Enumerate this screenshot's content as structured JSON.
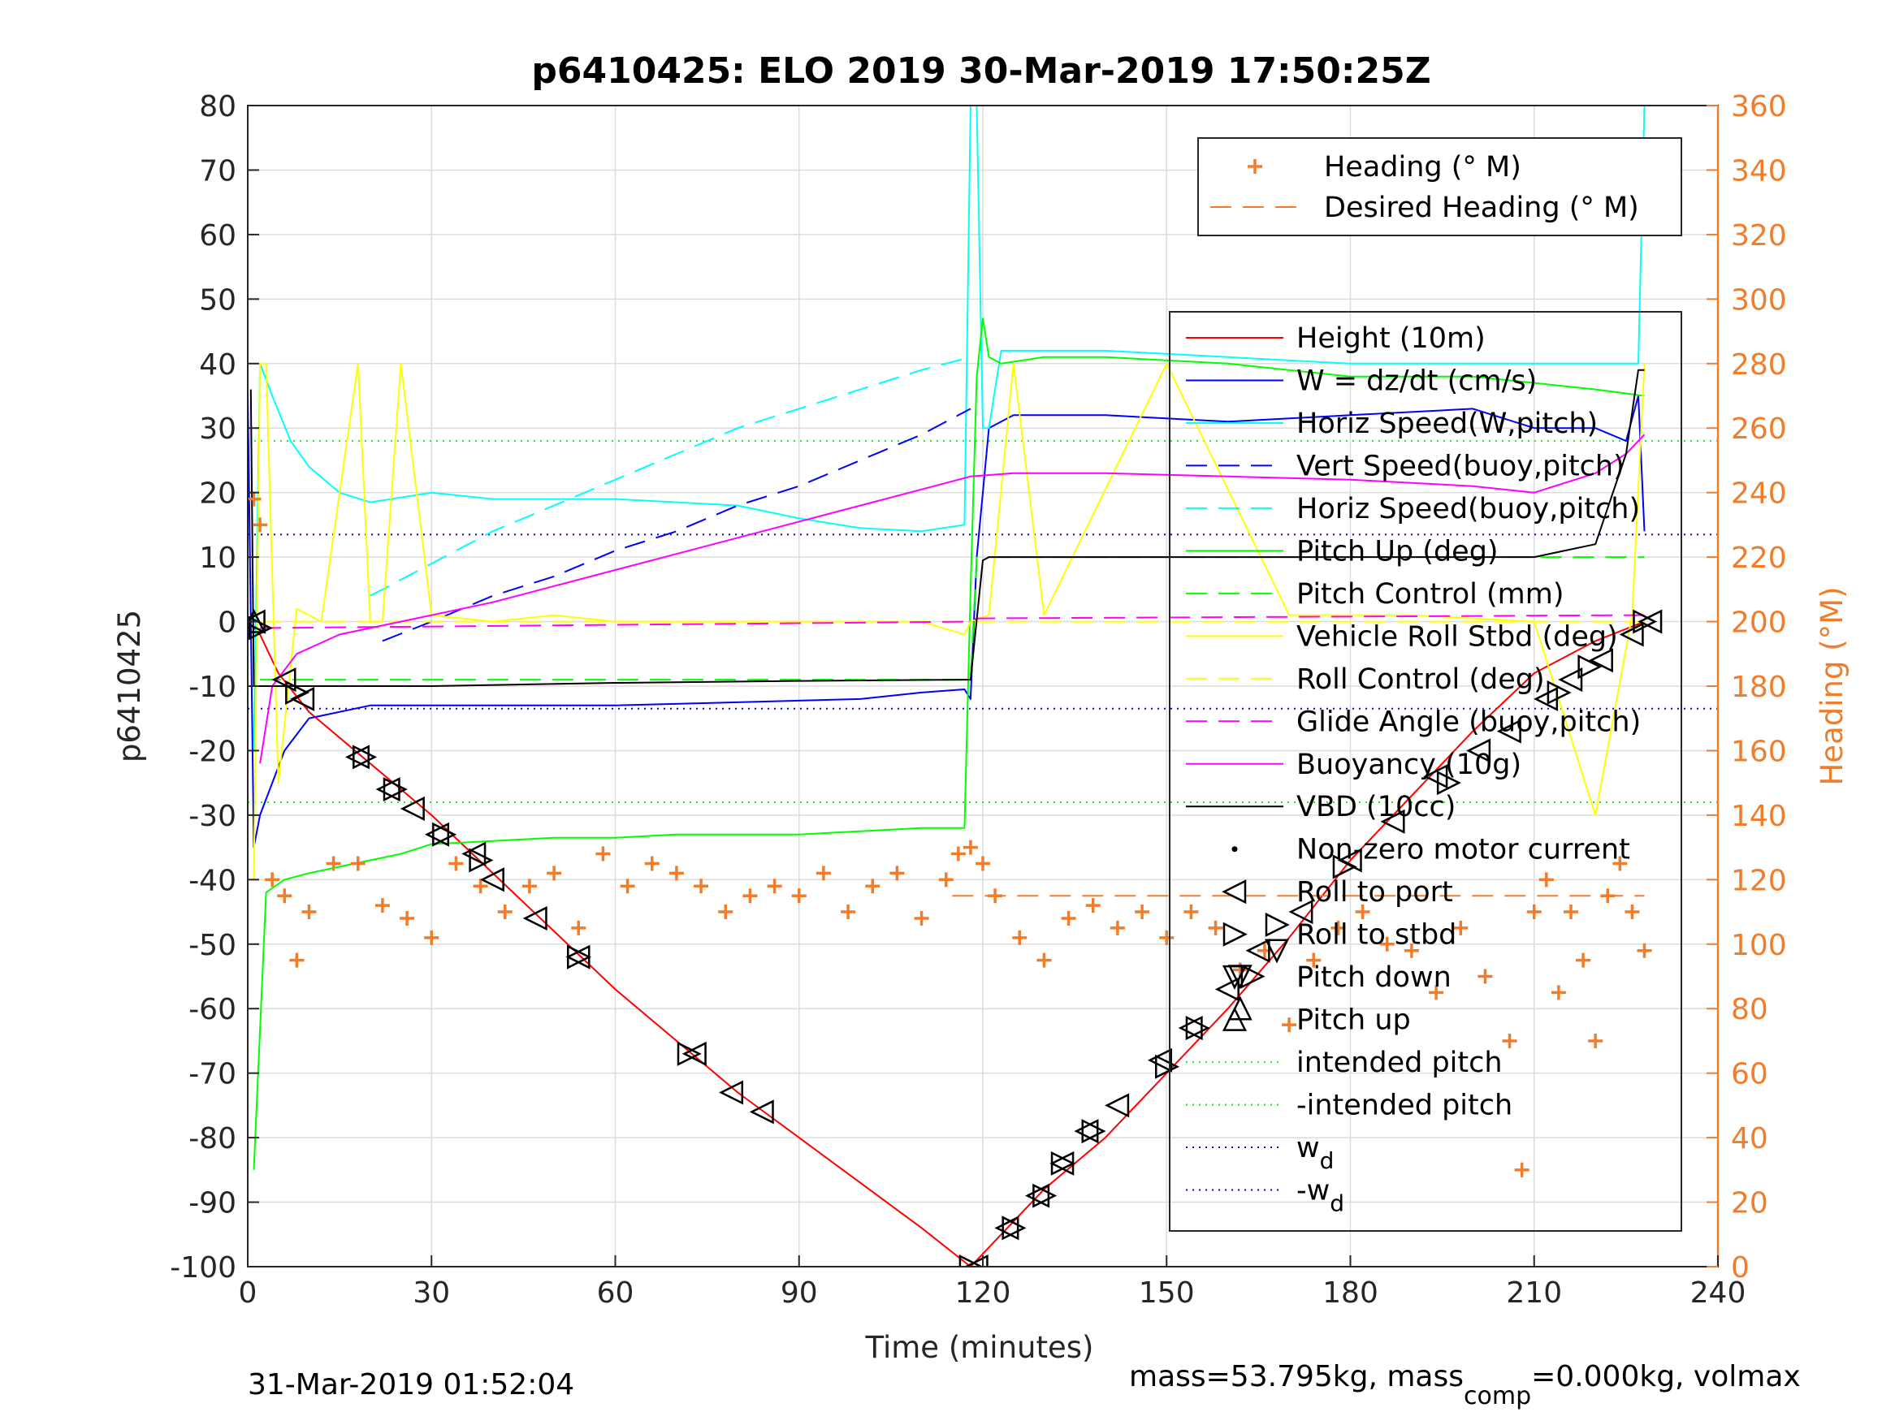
{
  "chart_data": {
    "type": "line",
    "title": "p6410425: ELO 2019 30-Mar-2019 17:50:25Z",
    "xlabel": "Time (minutes)",
    "ylabel_left": "p6410425",
    "ylabel_right": "Heading (°M)",
    "xlim": [
      0,
      240
    ],
    "ylim_left": [
      -100,
      80
    ],
    "ylim_right": [
      0,
      360
    ],
    "x_ticks": [
      0,
      30,
      60,
      90,
      120,
      150,
      180,
      210,
      240
    ],
    "y_ticks_left": [
      -100,
      -90,
      -80,
      -70,
      -60,
      -50,
      -40,
      -30,
      -20,
      -10,
      0,
      10,
      20,
      30,
      40,
      50,
      60,
      70,
      80
    ],
    "y_ticks_right": [
      0,
      20,
      40,
      60,
      80,
      100,
      120,
      140,
      160,
      180,
      200,
      220,
      240,
      260,
      280,
      300,
      320,
      340,
      360
    ],
    "grid": true,
    "legend_right_axis": {
      "placement": "top-right",
      "entries": [
        {
          "label": "Heading (° M)",
          "style": "plus",
          "color": "#F07D2B"
        },
        {
          "label": "Desired Heading (° M)",
          "style": "dash",
          "color": "#F07D2B"
        }
      ]
    },
    "legend_left_axis": {
      "placement": "right",
      "entries": [
        {
          "label": "Height (10m)",
          "style": "solid",
          "color": "#FF0000"
        },
        {
          "label": "W = dz/dt (cm/s)",
          "style": "solid",
          "color": "#0000FF"
        },
        {
          "label": "Horiz Speed(W,pitch)",
          "style": "solid",
          "color": "#00FFFF"
        },
        {
          "label": "Vert Speed(buoy,pitch)",
          "style": "dash",
          "color": "#0000FF"
        },
        {
          "label": "Horiz Speed(buoy,pitch)",
          "style": "dash",
          "color": "#00FFFF"
        },
        {
          "label": "Pitch Up (deg)",
          "style": "solid",
          "color": "#00FF00"
        },
        {
          "label": "Pitch Control (mm)",
          "style": "dash",
          "color": "#00FF00"
        },
        {
          "label": "Vehicle Roll Stbd (deg)",
          "style": "solid",
          "color": "#FFFF00"
        },
        {
          "label": "Roll Control (deg)",
          "style": "dash",
          "color": "#FFFF00"
        },
        {
          "label": "Glide Angle (buoy,pitch)",
          "style": "dash",
          "color": "#FF00FF"
        },
        {
          "label": "Buoyancy (10g)",
          "style": "solid",
          "color": "#FF00FF"
        },
        {
          "label": "VBD (10cc)",
          "style": "solid",
          "color": "#000000"
        },
        {
          "label": "Non-zero motor current",
          "style": "dot",
          "color": "#000000"
        },
        {
          "label": "Roll to port",
          "style": "tri-left",
          "color": "#000000"
        },
        {
          "label": "Roll to stbd",
          "style": "tri-right",
          "color": "#000000"
        },
        {
          "label": "Pitch down",
          "style": "tri-down",
          "color": "#000000"
        },
        {
          "label": "Pitch up",
          "style": "tri-up",
          "color": "#000000"
        },
        {
          "label": "intended pitch",
          "style": "dotted",
          "color": "#00FF00"
        },
        {
          "label": "-intended pitch",
          "style": "dotted",
          "color": "#00FF00"
        },
        {
          "label": "w",
          "sub": "d",
          "style": "dotted",
          "color": "#0000FF"
        },
        {
          "label": "-w",
          "sub": "d",
          "style": "dotted",
          "color": "#0000FF"
        }
      ]
    },
    "series": [
      {
        "name": "Height (10m)",
        "axis": "left",
        "color": "#FF0000",
        "x": [
          0,
          2,
          5,
          10,
          20,
          30,
          40,
          50,
          60,
          70,
          80,
          90,
          100,
          110,
          118,
          119,
          125,
          130,
          140,
          150,
          160,
          170,
          180,
          190,
          200,
          210,
          220,
          228
        ],
        "y": [
          0,
          -2,
          -8,
          -14,
          -22,
          -30,
          -39,
          -48,
          -57,
          -65,
          -73,
          -80,
          -87,
          -94,
          -100,
          -99,
          -93,
          -88,
          -80,
          -70,
          -60,
          -49,
          -37,
          -27,
          -17,
          -8,
          -3,
          0
        ]
      },
      {
        "name": "W = dz/dt (cm/s)",
        "axis": "left",
        "color": "#0000FF",
        "x": [
          0,
          1,
          2,
          4,
          6,
          10,
          20,
          40,
          60,
          80,
          100,
          110,
          117,
          118,
          119,
          121,
          125,
          140,
          160,
          180,
          200,
          210,
          220,
          225,
          227,
          228
        ],
        "y": [
          36,
          -35,
          -30,
          -25,
          -20,
          -15,
          -13,
          -13,
          -13,
          -12.5,
          -12,
          -11,
          -10.5,
          -12,
          10,
          30,
          32,
          32,
          31,
          32,
          33,
          30,
          30,
          28,
          35,
          14
        ]
      },
      {
        "name": "Horiz Speed(W,pitch)",
        "axis": "left",
        "color": "#00FFFF",
        "x": [
          1,
          2,
          4,
          7,
          10,
          15,
          20,
          30,
          40,
          60,
          80,
          90,
          100,
          110,
          117,
          118,
          119,
          120,
          121,
          123,
          140,
          160,
          180,
          200,
          210,
          220,
          227,
          228
        ],
        "y": [
          -20,
          40,
          35,
          28,
          24,
          20,
          18.5,
          20,
          19,
          19,
          18,
          16,
          14.5,
          14,
          15,
          80,
          80,
          30,
          30,
          42,
          42,
          41,
          40,
          40,
          40,
          40,
          40,
          80
        ]
      },
      {
        "name": "Vert Speed(buoy,pitch)",
        "axis": "left",
        "color": "#0000FF",
        "dash": true,
        "x": [
          22,
          30,
          40,
          50,
          60,
          70,
          80,
          90,
          100,
          110,
          118
        ],
        "y": [
          -3,
          0,
          4,
          7,
          11,
          14,
          18,
          21,
          25,
          29,
          33
        ]
      },
      {
        "name": "Horiz Speed(buoy,pitch)",
        "axis": "left",
        "color": "#00FFFF",
        "dash": true,
        "x": [
          20,
          30,
          40,
          50,
          60,
          70,
          80,
          90,
          100,
          110,
          118
        ],
        "y": [
          4,
          9,
          14,
          18,
          22,
          26,
          30,
          33,
          36,
          39,
          41
        ]
      },
      {
        "name": "Pitch Up (deg)",
        "axis": "left",
        "color": "#00FF00",
        "x": [
          1,
          3,
          6,
          10,
          15,
          20,
          25,
          30,
          40,
          50,
          60,
          70,
          80,
          90,
          100,
          110,
          117,
          118,
          119,
          120,
          121,
          123,
          130,
          140,
          160,
          180,
          200,
          210,
          220,
          228
        ],
        "y": [
          -85,
          -42,
          -40,
          -39,
          -38,
          -37,
          -36,
          -34.5,
          -34,
          -33.5,
          -33.5,
          -33,
          -33,
          -33,
          -32.5,
          -32,
          -32,
          5,
          38,
          47,
          41,
          40,
          41,
          41,
          40,
          38,
          38,
          37,
          36,
          35
        ]
      },
      {
        "name": "Pitch Control (mm)",
        "axis": "left",
        "color": "#00FF00",
        "dash": true,
        "x": [
          2,
          60,
          118,
          119,
          228
        ],
        "y": [
          -9,
          -9,
          -9,
          10,
          10
        ]
      },
      {
        "name": "Vehicle Roll Stbd (deg)",
        "axis": "left",
        "color": "#FFFF00",
        "x": [
          1,
          2,
          3,
          5,
          8,
          12,
          18,
          20,
          22,
          25,
          30,
          40,
          50,
          60,
          70,
          80,
          90,
          100,
          110,
          117,
          118,
          121,
          125,
          130,
          150,
          170,
          190,
          210,
          220,
          226,
          228
        ],
        "y": [
          -40,
          40,
          40,
          -25,
          2,
          0,
          40,
          0,
          0,
          40,
          1,
          0,
          1,
          0,
          0,
          0,
          0,
          0,
          0,
          -2,
          0,
          1,
          40,
          1,
          40,
          1,
          1,
          0,
          -30,
          1,
          40
        ]
      },
      {
        "name": "Roll Control (deg)",
        "axis": "left",
        "color": "#FFFF00",
        "dash": true,
        "x": [
          2,
          118,
          119,
          228
        ],
        "y": [
          0,
          0,
          0,
          0
        ]
      },
      {
        "name": "Glide Angle (buoy,pitch)",
        "axis": "left",
        "color": "#FF00FF",
        "dash": true,
        "x": [
          2,
          118,
          119,
          228
        ],
        "y": [
          -1,
          0,
          0.5,
          1
        ]
      },
      {
        "name": "Buoyancy (10g)",
        "axis": "left",
        "color": "#FF00FF",
        "x": [
          2,
          4,
          8,
          15,
          20,
          30,
          40,
          60,
          80,
          100,
          118,
          125,
          140,
          160,
          180,
          200,
          210,
          220,
          225,
          228
        ],
        "y": [
          -22,
          -10,
          -5,
          -2,
          -1,
          1,
          3,
          8,
          13,
          18,
          22.5,
          23,
          23,
          22.5,
          22,
          21,
          20,
          23,
          26,
          29
        ]
      },
      {
        "name": "VBD (10cc)",
        "axis": "left",
        "color": "#000000",
        "x": [
          0.5,
          1,
          2,
          30,
          60,
          90,
          117,
          118,
          120,
          121,
          140,
          180,
          210,
          220,
          225,
          227,
          228
        ],
        "y": [
          36,
          -10,
          -10,
          -10,
          -9.5,
          -9.2,
          -9,
          -9,
          9.5,
          10,
          10,
          10,
          10,
          12,
          26,
          39,
          39
        ]
      },
      {
        "name": "Heading (° M)",
        "axis": "right",
        "color": "#F07D2B",
        "marker": "plus",
        "x": [
          1,
          2,
          4,
          6,
          8,
          10,
          14,
          18,
          22,
          26,
          30,
          34,
          38,
          42,
          46,
          50,
          54,
          58,
          62,
          66,
          70,
          74,
          78,
          82,
          86,
          90,
          94,
          98,
          102,
          106,
          110,
          114,
          116,
          118,
          120,
          122,
          126,
          130,
          134,
          138,
          142,
          146,
          150,
          154,
          158,
          162,
          166,
          170,
          174,
          178,
          182,
          186,
          190,
          194,
          198,
          202,
          206,
          208,
          210,
          212,
          214,
          216,
          218,
          220,
          222,
          224,
          226,
          228
        ],
        "y": [
          238,
          230,
          120,
          115,
          95,
          110,
          125,
          125,
          112,
          108,
          102,
          125,
          118,
          110,
          118,
          122,
          105,
          128,
          118,
          125,
          122,
          118,
          110,
          115,
          118,
          115,
          122,
          110,
          118,
          122,
          108,
          120,
          128,
          130,
          125,
          115,
          102,
          95,
          108,
          112,
          105,
          110,
          102,
          110,
          105,
          92,
          98,
          75,
          95,
          105,
          110,
          100,
          98,
          85,
          105,
          90,
          70,
          30,
          110,
          120,
          85,
          110,
          95,
          70,
          115,
          125,
          110,
          98
        ]
      },
      {
        "name": "Desired Heading (° M)",
        "axis": "right",
        "color": "#F07D2B",
        "dash": true,
        "x": [
          115,
          130,
          150,
          170,
          190,
          210,
          228
        ],
        "y": [
          115,
          115,
          115,
          115,
          115,
          115,
          115
        ]
      }
    ],
    "reference_lines": [
      {
        "label": "intended pitch",
        "y": 28,
        "color": "#00FF00",
        "style": "dotted"
      },
      {
        "label": "-intended pitch",
        "y": -28,
        "color": "#00FF00",
        "style": "dotted"
      },
      {
        "label": "w_d",
        "y": 13.5,
        "color": "#0000FF",
        "style": "dotted"
      },
      {
        "label": "-w_d",
        "y": -13.5,
        "color": "#0000FF",
        "style": "dotted"
      }
    ],
    "markers": {
      "roll_to_port": [
        [
          1,
          0
        ],
        [
          6,
          -9
        ],
        [
          9,
          -12
        ],
        [
          18,
          -21
        ],
        [
          23,
          -26
        ],
        [
          27,
          -29
        ],
        [
          31,
          -33
        ],
        [
          37,
          -36
        ],
        [
          40,
          -40
        ],
        [
          47,
          -46
        ],
        [
          54,
          -52
        ],
        [
          73,
          -67
        ],
        [
          79,
          -73
        ],
        [
          84,
          -76
        ],
        [
          119,
          -100
        ],
        [
          124,
          -94
        ],
        [
          129,
          -89
        ],
        [
          133,
          -84
        ],
        [
          137,
          -79
        ],
        [
          142,
          -75
        ],
        [
          149,
          -68
        ],
        [
          154,
          -63
        ],
        [
          160,
          -57
        ],
        [
          165,
          -51
        ],
        [
          172,
          -45
        ],
        [
          180,
          -37
        ],
        [
          187,
          -31
        ],
        [
          194,
          -24
        ],
        [
          201,
          -20
        ],
        [
          206,
          -17
        ],
        [
          212,
          -12
        ],
        [
          216,
          -9
        ],
        [
          221,
          -6
        ],
        [
          226,
          -2
        ],
        [
          229,
          0
        ]
      ],
      "roll_to_stbd": [
        [
          2,
          -1
        ],
        [
          8,
          -11
        ],
        [
          19,
          -21
        ],
        [
          24,
          -26
        ],
        [
          32,
          -33
        ],
        [
          38,
          -37
        ],
        [
          54,
          -52
        ],
        [
          72,
          -67
        ],
        [
          118,
          -100
        ],
        [
          125,
          -94
        ],
        [
          130,
          -89
        ],
        [
          133,
          -84
        ],
        [
          138,
          -79
        ],
        [
          150,
          -69
        ],
        [
          155,
          -63
        ],
        [
          164,
          -55
        ],
        [
          168,
          -47
        ],
        [
          179,
          -38
        ],
        [
          196,
          -25
        ],
        [
          214,
          -11
        ],
        [
          219,
          -7
        ],
        [
          228,
          0
        ]
      ],
      "pitch_down": [
        [
          162,
          -55
        ],
        [
          168,
          -51
        ]
      ],
      "pitch_up": [
        [
          1,
          0
        ],
        [
          162,
          -60
        ]
      ]
    }
  },
  "footer": {
    "timestamp": "31-Mar-2019 01:52:04",
    "mass_text": "mass=53.795kg, mass",
    "mass_sub": "comp",
    "mass_text_tail": "=0.000kg, volmax"
  }
}
